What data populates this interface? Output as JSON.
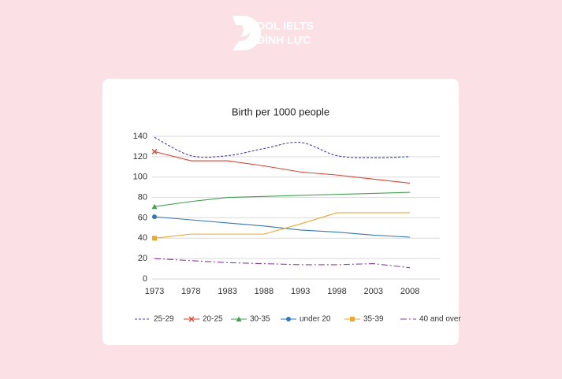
{
  "logo": {
    "line1": "DOL IELTS",
    "line2": "ĐÌNH LỰC"
  },
  "chart_data": {
    "type": "line",
    "title": "Birth per 1000 people",
    "categories": [
      "1973",
      "1978",
      "1983",
      "1988",
      "1993",
      "1998",
      "2003",
      "2008"
    ],
    "ylim": [
      0,
      140
    ],
    "yticks": [
      0,
      20,
      40,
      60,
      80,
      100,
      120,
      140
    ],
    "grid": true,
    "legend": "bottom",
    "series": [
      {
        "name": "25-29",
        "color": "#3b3bc9",
        "dash": "dashed",
        "smooth": true,
        "values": [
          139,
          121,
          121,
          128,
          134,
          121,
          119,
          120
        ]
      },
      {
        "name": "20-25",
        "color": "#e8402a",
        "marker": "x",
        "values": [
          125,
          116,
          116,
          111,
          105,
          102,
          98,
          94
        ]
      },
      {
        "name": "30-35",
        "color": "#3fa34d",
        "marker": "triangle",
        "values": [
          71,
          76,
          80,
          81,
          82,
          83,
          84,
          85
        ]
      },
      {
        "name": "under 20",
        "color": "#2f78c4",
        "marker": "circle",
        "values": [
          61,
          58,
          55,
          52,
          48,
          46,
          43,
          41
        ]
      },
      {
        "name": "35-39",
        "color": "#f5a623",
        "marker": "square",
        "values": [
          40,
          44,
          44,
          44,
          54,
          65,
          65,
          65
        ]
      },
      {
        "name": "40 and over",
        "color": "#8e3a9e",
        "dash": "dashdot",
        "values": [
          20,
          18,
          16,
          15,
          14,
          14,
          15,
          11
        ]
      }
    ]
  }
}
